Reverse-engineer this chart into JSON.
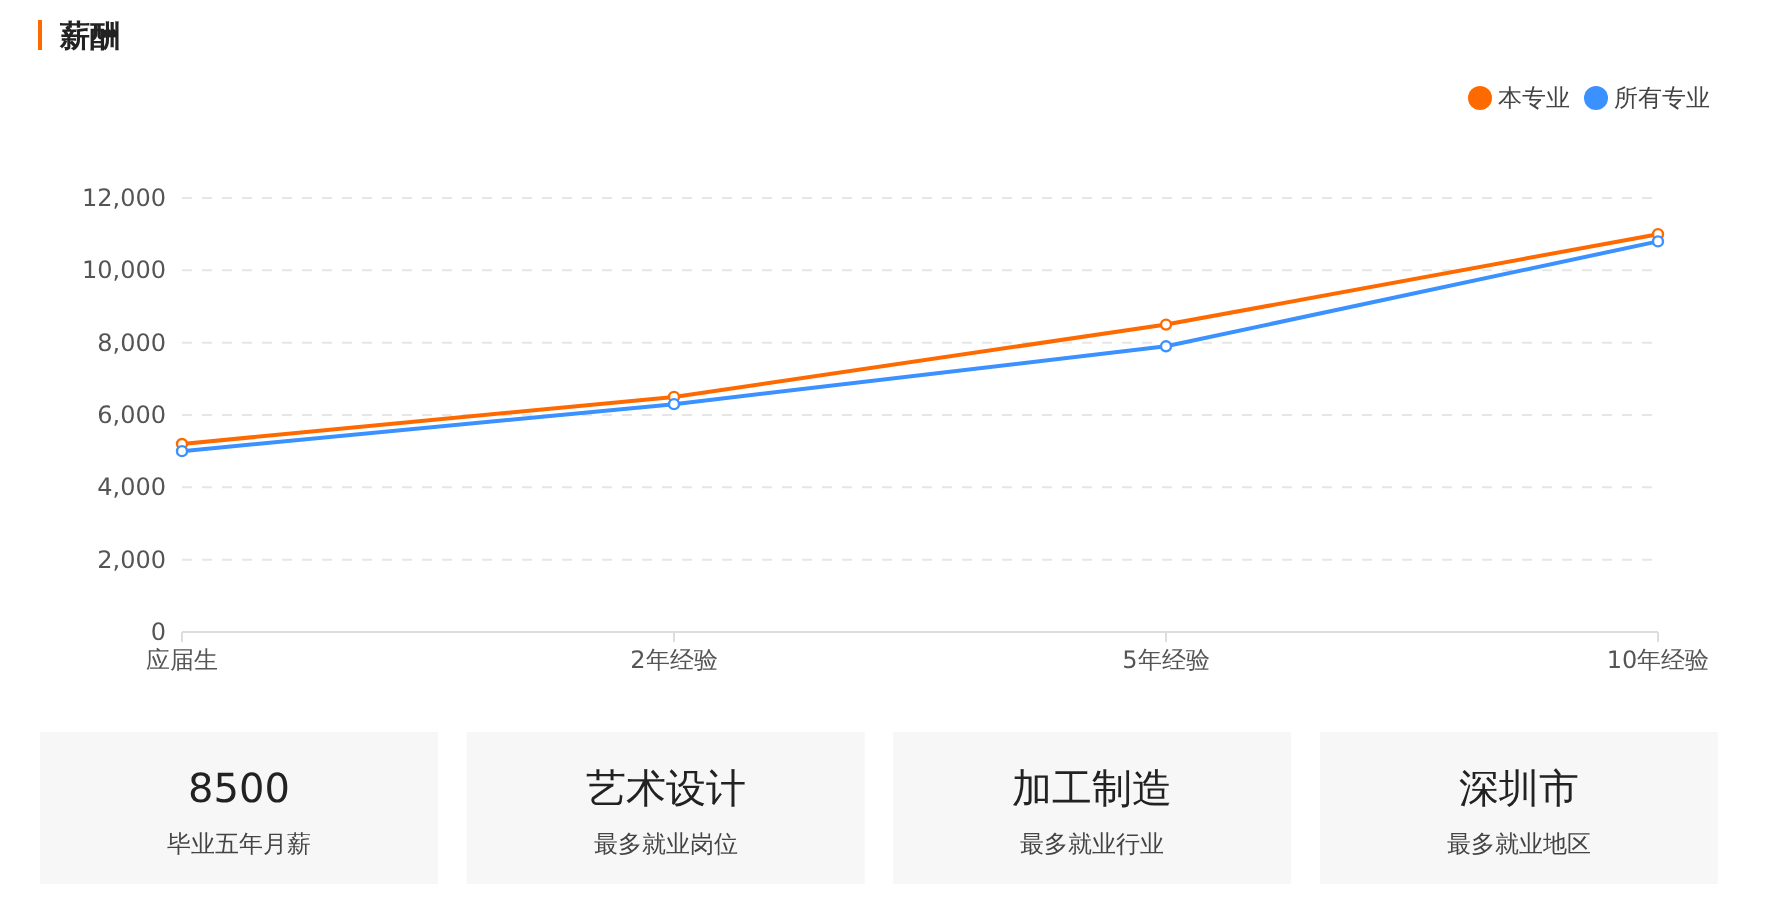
{
  "chart_data": [
    {
      "type": "line",
      "title": "薪酬",
      "categories": [
        "应届生",
        "2年经验",
        "5年经验",
        "10年经验"
      ],
      "series": [
        {
          "name": "本专业",
          "color": "#ff6a00",
          "values": [
            5200,
            6500,
            8500,
            11000
          ]
        },
        {
          "name": "所有专业",
          "color": "#3a91ff",
          "values": [
            5000,
            6300,
            7900,
            10800
          ]
        }
      ],
      "ylim": [
        0,
        12000
      ],
      "yticks": [
        0,
        {
          "value": 2000,
          "label": "2,000"
        },
        {
          "value": 4000,
          "label": "4,000"
        },
        {
          "value": 6000,
          "label": "6,000"
        },
        {
          "value": 8000,
          "label": "8,000"
        },
        {
          "value": 10000,
          "label": "10,000"
        },
        {
          "value": 12000,
          "label": "12,000"
        }
      ],
      "grid": "y",
      "legend": "top right",
      "marker": "circle",
      "line_style": "solid"
    },
    {
      "type": "other",
      "annotations": [
        "8500",
        "毕业五年月薪",
        "艺术设计",
        "最多就业岗位",
        "加工制造",
        "最多就业行业",
        "深圳市",
        "最多就业地区"
      ]
    }
  ]
}
